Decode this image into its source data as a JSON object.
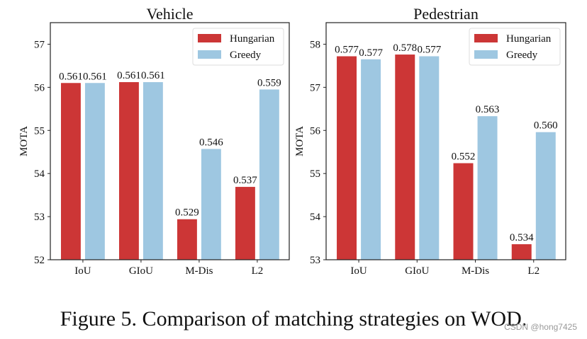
{
  "chart_data": [
    {
      "type": "bar",
      "title": "Vehicle",
      "xlabel": "",
      "ylabel": "MOTA",
      "categories": [
        "IoU",
        "GIoU",
        "M-Dis",
        "L2"
      ],
      "ylim": [
        52,
        57.5
      ],
      "yticks": [
        52,
        53,
        54,
        55,
        56,
        57
      ],
      "grid": false,
      "legend": "top-right",
      "series": [
        {
          "name": "Hungarian",
          "color": "#cc3636",
          "values": [
            56.1,
            56.12,
            52.94,
            53.69
          ],
          "labels": [
            "0.561",
            "0.561",
            "0.529",
            "0.537"
          ]
        },
        {
          "name": "Greedy",
          "color": "#9ec7e1",
          "values": [
            56.1,
            56.12,
            54.57,
            55.95
          ],
          "labels": [
            "0.561",
            "0.561",
            "0.546",
            "0.559"
          ]
        }
      ]
    },
    {
      "type": "bar",
      "title": "Pedestrian",
      "xlabel": "",
      "ylabel": "MOTA",
      "categories": [
        "IoU",
        "GIoU",
        "M-Dis",
        "L2"
      ],
      "ylim": [
        53,
        58.5
      ],
      "yticks": [
        53,
        54,
        55,
        56,
        57,
        58
      ],
      "grid": false,
      "legend": "top-right",
      "series": [
        {
          "name": "Hungarian",
          "color": "#cc3636",
          "values": [
            57.72,
            57.76,
            55.24,
            53.36
          ],
          "labels": [
            "0.577",
            "0.578",
            "0.552",
            "0.534"
          ]
        },
        {
          "name": "Greedy",
          "color": "#9ec7e1",
          "values": [
            57.65,
            57.72,
            56.33,
            55.96
          ],
          "labels": [
            "0.577",
            "0.577",
            "0.563",
            "0.560"
          ]
        }
      ]
    }
  ],
  "caption": "Figure 5. Comparison of matching strategies on WOD.",
  "watermark": "CSDN @hong7425"
}
